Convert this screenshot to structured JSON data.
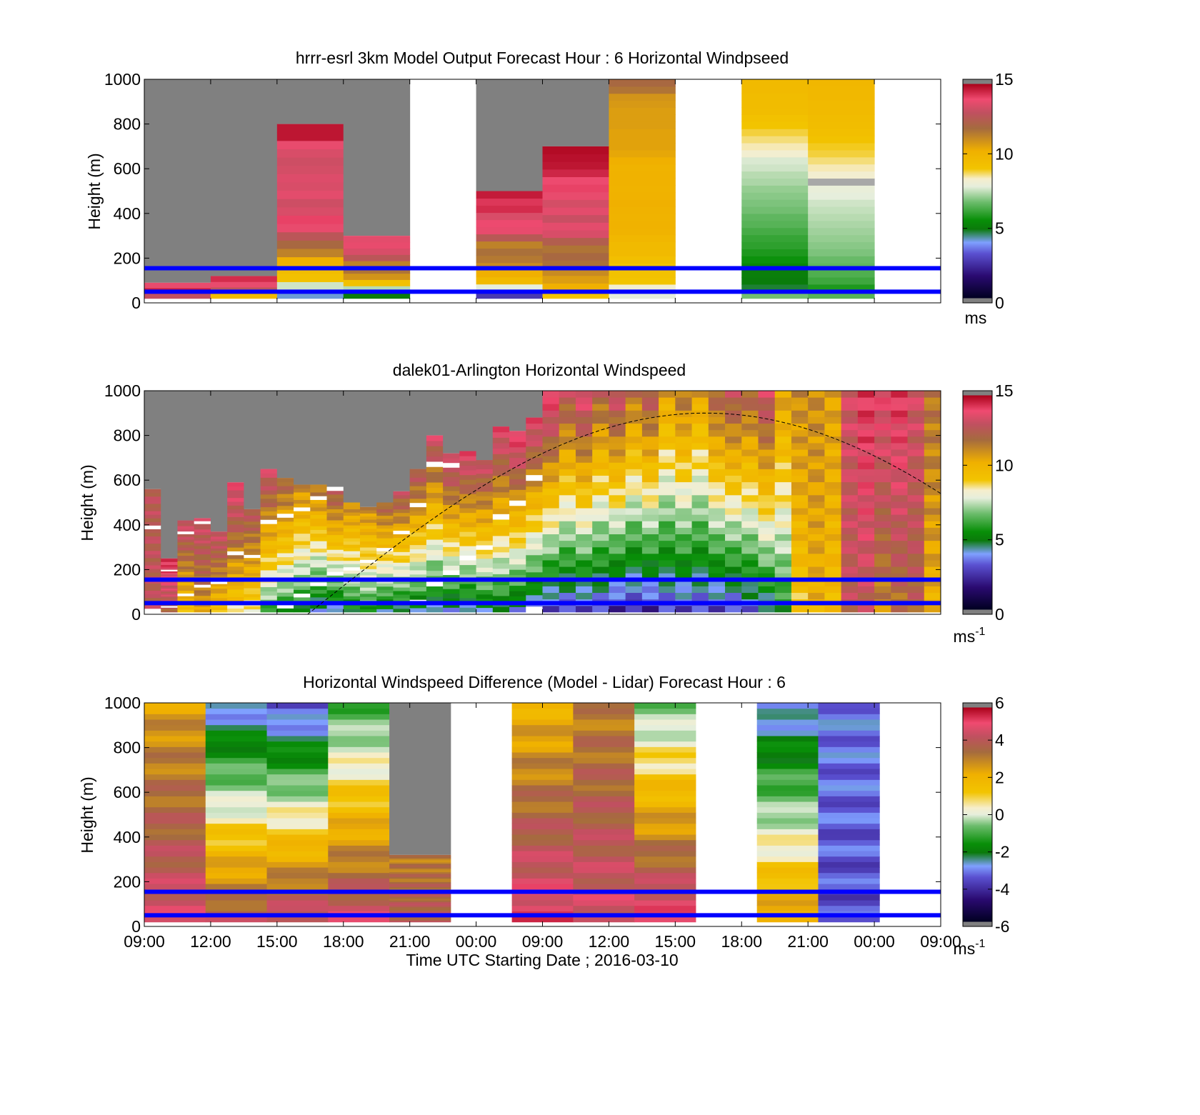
{
  "colors": {
    "background": "#ffffff",
    "missing": "#808080",
    "reference_lines": "#0000ff",
    "daytime_curve": "#000000"
  },
  "chart_data": [
    {
      "type": "heatmap",
      "title": "hrrr-esrl 3km Model Output   Forecast Hour : 6 Horizontal Windpseed",
      "xlabel": "",
      "ylabel": "Height (m)",
      "ylim": [
        0,
        1000
      ],
      "yticks": [
        "0",
        "200",
        "400",
        "600",
        "800",
        "1000"
      ],
      "xticks": [],
      "colorbar": {
        "ticks": [
          "0",
          "5",
          "10",
          "15"
        ],
        "range": [
          0,
          15
        ],
        "unit": "ms",
        "unit_sup": ""
      },
      "reference_lines_m": [
        50,
        155
      ],
      "columns": [
        {
          "top": 90,
          "values": [
            12.8,
            14.5,
            13.5
          ]
        },
        {
          "top": 120,
          "values": [
            9.6,
            12.5,
            13.5,
            14.2
          ]
        },
        {
          "top": 800,
          "values": [
            4.2,
            7.6,
            9.2,
            9.4,
            10.2,
            11.2,
            11.8,
            12.5,
            13.5,
            13.8,
            13.2,
            13.0,
            13.4,
            13.2,
            13.3,
            13.1,
            13.0,
            13.2,
            13.5,
            14.6,
            14.6
          ]
        },
        {
          "top": 300,
          "values": [
            5.0,
            7.4,
            9.2,
            10.8,
            11.5,
            11.2,
            12.5,
            13.2,
            13.5,
            13.4
          ]
        },
        {
          "top": 0,
          "values": []
        },
        {
          "top": 500,
          "values": [
            2.8,
            7.8,
            9.6,
            10.2,
            11.0,
            11.4,
            11.6,
            11.2,
            12.4,
            13.5,
            13.6,
            13.2,
            14.2,
            14.0,
            14.5
          ]
        },
        {
          "top": 700,
          "values": [
            9.0,
            10.2,
            10.6,
            11.0,
            11.6,
            11.8,
            11.5,
            12.2,
            13.2,
            13.4,
            12.9,
            13.4,
            13.1,
            13.5,
            13.8,
            13.6,
            14.3,
            14.6,
            14.7,
            14.8
          ]
        },
        {
          "top": 1000,
          "values": [
            7.8,
            8.2,
            9.0,
            9.1,
            9.0,
            9.3,
            9.6,
            9.6,
            9.8,
            10.0,
            10.1,
            10.0,
            10.1,
            10.2,
            10.1,
            10.0,
            10.1,
            10.1,
            10.0,
            10.2,
            10.4,
            10.5,
            10.5,
            10.5,
            10.6,
            10.6,
            10.6,
            10.7,
            10.8,
            11.5,
            11.8
          ]
        },
        {
          "top": 0,
          "values": []
        },
        {
          "top": 1000,
          "values": [
            6.8,
            4.8,
            5.0,
            5.1,
            5.3,
            5.6,
            5.8,
            6.0,
            6.1,
            6.3,
            6.5,
            6.6,
            6.8,
            6.9,
            7.0,
            7.1,
            7.3,
            7.4,
            7.6,
            7.7,
            8.2,
            8.4,
            8.6,
            8.8,
            9.0,
            9.2,
            9.4,
            9.5,
            9.5,
            9.6,
            9.6
          ]
        },
        {
          "top": 1000,
          "values": [
            6.5,
            5.8,
            6.2,
            6.4,
            6.6,
            6.7,
            6.9,
            7.0,
            7.1,
            7.2,
            7.3,
            7.4,
            7.5,
            7.6,
            7.8,
            7.9,
            0,
            8.2,
            8.4,
            8.6,
            8.8,
            8.9,
            9.1,
            9.3,
            9.4,
            9.5,
            9.6,
            9.6,
            9.7,
            9.7,
            9.8
          ]
        },
        {
          "top": 0,
          "values": []
        }
      ]
    },
    {
      "type": "heatmap",
      "title": "dalek01-Arlington  Horizontal Windspeed",
      "xlabel": "",
      "ylabel": "Height (m)",
      "ylim": [
        0,
        1000
      ],
      "yticks": [
        "0",
        "200",
        "400",
        "600",
        "800",
        "1000"
      ],
      "xticks": [],
      "colorbar": {
        "ticks": [
          "0",
          "5",
          "10",
          "15"
        ],
        "range": [
          0,
          15
        ],
        "unit": "ms",
        "unit_sup": "-1"
      },
      "reference_lines_m": [
        50,
        155
      ],
      "daytime_curve": {
        "peak_m": 900,
        "peak_frac": 0.705,
        "start_frac": 0.205,
        "end_frac": 1.0
      },
      "profiles": [
        {
          "top": 560,
          "near": 12.5,
          "far": 12.5
        },
        {
          "top": 250,
          "near": 12.0,
          "far": 14.0
        },
        {
          "top": 420,
          "near": 9.0,
          "far": 13.0
        },
        {
          "top": 430,
          "near": 10.5,
          "far": 13.0
        },
        {
          "top": 370,
          "near": 9.0,
          "far": 13.0
        },
        {
          "top": 590,
          "near": 8.5,
          "far": 13.5
        },
        {
          "top": 470,
          "near": 8.0,
          "far": 12.5
        },
        {
          "top": 650,
          "near": 6.0,
          "far": 13.0
        },
        {
          "top": 610,
          "near": 5.5,
          "far": 12.0
        },
        {
          "top": 580,
          "near": 5.0,
          "far": 11.0
        },
        {
          "top": 580,
          "near": 4.0,
          "far": 11.5
        },
        {
          "top": 570,
          "near": 4.0,
          "far": 12.5
        },
        {
          "top": 500,
          "near": 5.0,
          "far": 11.0
        },
        {
          "top": 480,
          "near": 5.5,
          "far": 11.0
        },
        {
          "top": 500,
          "near": 4.5,
          "far": 12.0
        },
        {
          "top": 550,
          "near": 4.5,
          "far": 12.5
        },
        {
          "top": 650,
          "near": 4.5,
          "far": 12.5
        },
        {
          "top": 800,
          "near": 4.0,
          "far": 13.0
        },
        {
          "top": 720,
          "near": 4.0,
          "far": 13.5
        },
        {
          "top": 730,
          "near": 4.0,
          "far": 13.5
        },
        {
          "top": 690,
          "near": 4.5,
          "far": 13.0
        },
        {
          "top": 840,
          "near": 4.5,
          "far": 13.5
        },
        {
          "top": 820,
          "near": 4.0,
          "far": 14.0
        },
        {
          "top": 880,
          "near": 3.5,
          "far": 13.5
        },
        {
          "top": 1000,
          "near": 3.0,
          "far": 14.0
        },
        {
          "top": 1000,
          "near": 3.0,
          "far": 12.5
        },
        {
          "top": 1000,
          "near": 3.0,
          "far": 13.5
        },
        {
          "top": 1000,
          "near": 3.0,
          "far": 12.0
        },
        {
          "top": 1000,
          "near": 2.5,
          "far": 13.0
        },
        {
          "top": 1000,
          "near": 2.5,
          "far": 11.5
        },
        {
          "top": 1000,
          "near": 2.5,
          "far": 12.5
        },
        {
          "top": 1000,
          "near": 3.0,
          "far": 10.5
        },
        {
          "top": 1000,
          "near": 3.0,
          "far": 11.5
        },
        {
          "top": 1000,
          "near": 3.0,
          "far": 10.5
        },
        {
          "top": 1000,
          "near": 3.0,
          "far": 12.0
        },
        {
          "top": 1000,
          "near": 3.0,
          "far": 12.5
        },
        {
          "top": 1000,
          "near": 3.5,
          "far": 12.0
        },
        {
          "top": 1000,
          "near": 4.0,
          "far": 13.0
        },
        {
          "top": 1000,
          "near": 5.5,
          "far": 10.5
        },
        {
          "top": 1000,
          "near": 9.0,
          "far": 11.0
        },
        {
          "top": 1000,
          "near": 10.0,
          "far": 11.0
        },
        {
          "top": 1000,
          "near": 9.5,
          "far": 10.5
        },
        {
          "top": 1000,
          "near": 12.5,
          "far": 13.0
        },
        {
          "top": 1000,
          "near": 12.5,
          "far": 14.0
        },
        {
          "top": 1000,
          "near": 11.0,
          "far": 13.5
        },
        {
          "top": 1000,
          "near": 11.5,
          "far": 14.0
        },
        {
          "top": 1000,
          "near": 12.0,
          "far": 13.0
        },
        {
          "top": 1000,
          "near": 10.0,
          "far": 11.5
        }
      ]
    },
    {
      "type": "heatmap",
      "title": "Horizontal Windspeed Difference (Model - Lidar) Forecast Hour : 6",
      "xlabel": "Time UTC  Starting Date ; 2016-03-10",
      "ylabel": "Height (m)",
      "ylim": [
        0,
        1000
      ],
      "yticks": [
        "0",
        "200",
        "400",
        "600",
        "800",
        "1000"
      ],
      "xticks": [
        "09:00",
        "12:00",
        "15:00",
        "18:00",
        "21:00",
        "00:00",
        "09:00",
        "12:00",
        "15:00",
        "18:00",
        "21:00",
        "00:00",
        "09:00"
      ],
      "colorbar": {
        "ticks": [
          "-6",
          "-4",
          "-2",
          "0",
          "2",
          "4",
          "6"
        ],
        "range": [
          -6,
          6
        ],
        "unit": "ms",
        "unit_sup": "-1"
      },
      "reference_lines_m": [
        50,
        155
      ],
      "columns": [
        {
          "top": 1000,
          "from": 4.5,
          "to": 2.5
        },
        {
          "top": 1000,
          "from": 4.0,
          "to": -3.0
        },
        {
          "top": 1000,
          "from": 4.5,
          "to": -3.5
        },
        {
          "top": 1000,
          "from": 4.5,
          "to": -1.0
        },
        {
          "top": 320,
          "from": 4.0,
          "to": 3.0
        },
        {
          "top": 0,
          "from": 0,
          "to": 0
        },
        {
          "top": 1000,
          "from": 5.0,
          "to": 2.0
        },
        {
          "top": 1000,
          "from": 4.5,
          "to": 3.0
        },
        {
          "top": 1000,
          "from": 5.0,
          "to": -0.5
        },
        {
          "top": 0,
          "from": 0,
          "to": 0
        },
        {
          "top": 1000,
          "from": 2.5,
          "to": -3.0
        },
        {
          "top": 1000,
          "from": -3.5,
          "to": -3.0
        },
        {
          "top": 0,
          "from": 0,
          "to": 0
        }
      ]
    }
  ]
}
